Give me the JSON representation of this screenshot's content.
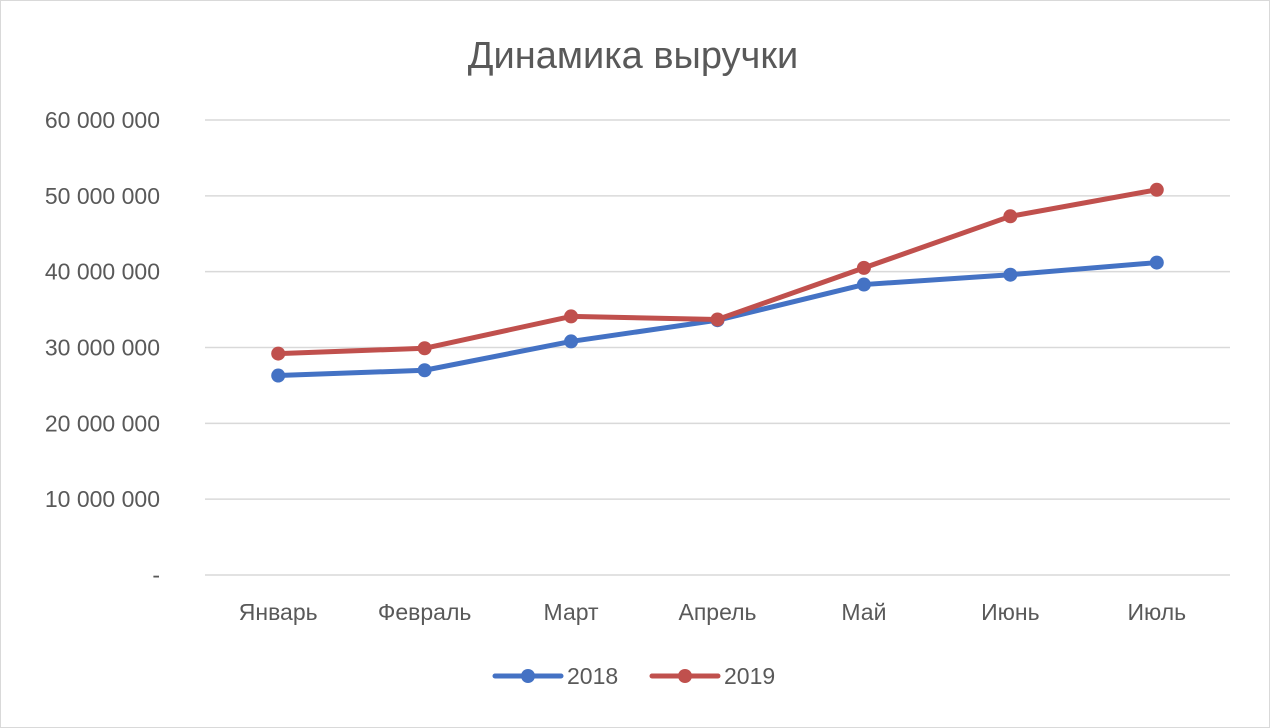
{
  "chart_data": {
    "type": "line",
    "title": "Динамика выручки",
    "categories": [
      "Январь",
      "Февраль",
      "Март",
      "Апрель",
      "Май",
      "Июнь",
      "Июль"
    ],
    "series": [
      {
        "name": "2018",
        "color": "#4472c4",
        "values": [
          26300000,
          27000000,
          30800000,
          33600000,
          38300000,
          39600000,
          41200000
        ]
      },
      {
        "name": "2019",
        "color": "#c0504d",
        "values": [
          29200000,
          29900000,
          34100000,
          33700000,
          40500000,
          47300000,
          50800000
        ]
      }
    ],
    "y_ticks": [
      {
        "value": 0,
        "label": "-"
      },
      {
        "value": 10000000,
        "label": "10 000 000"
      },
      {
        "value": 20000000,
        "label": "20 000 000"
      },
      {
        "value": 30000000,
        "label": "30 000 000"
      },
      {
        "value": 40000000,
        "label": "40 000 000"
      },
      {
        "value": 50000000,
        "label": "50 000 000"
      },
      {
        "value": 60000000,
        "label": "60 000 000"
      }
    ],
    "ylim": [
      0,
      60000000
    ],
    "grid": true,
    "legend": "bottom",
    "xlabel": "",
    "ylabel": ""
  }
}
